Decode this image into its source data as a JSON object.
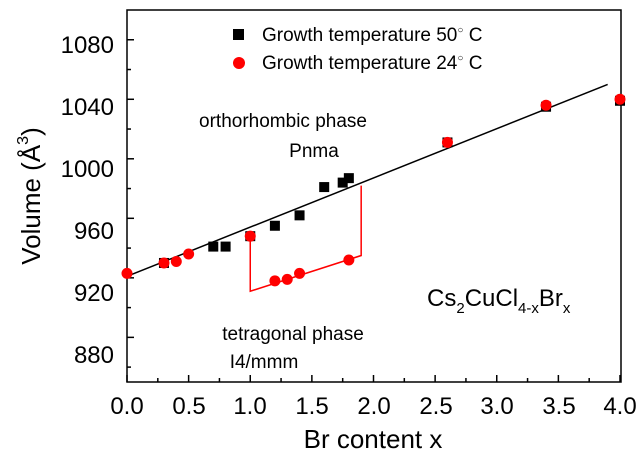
{
  "chart_data": {
    "type": "scatter",
    "xlabel": "Br content x",
    "ylabel": {
      "base": "Volume (",
      "sym": "Å",
      "sup": "3",
      "close": ")"
    },
    "xlim": [
      0,
      4.0
    ],
    "ylim": [
      850,
      1100
    ],
    "xticks": [
      "0.0",
      "0.5",
      "1.0",
      "1.5",
      "2.0",
      "2.5",
      "3.0",
      "3.5",
      "4.0"
    ],
    "yticks": [
      "880",
      "920",
      "960",
      "1000",
      "1040",
      "1080"
    ],
    "series": [
      {
        "name": "Growth temperature 50",
        "name_deg": "○",
        "name_unit": " C",
        "marker": "square",
        "color": "#000000",
        "points": [
          [
            0.3,
            930
          ],
          [
            0.7,
            941
          ],
          [
            0.8,
            941
          ],
          [
            1.0,
            948
          ],
          [
            1.2,
            955
          ],
          [
            1.4,
            962
          ],
          [
            1.6,
            981
          ],
          [
            1.75,
            984
          ],
          [
            1.8,
            987
          ],
          [
            2.6,
            1011
          ],
          [
            3.4,
            1035
          ],
          [
            4.0,
            1039
          ]
        ]
      },
      {
        "name": "Growth temperature 24",
        "name_deg": "○",
        "name_unit": " C",
        "marker": "circle",
        "color": "#ff0000",
        "points": [
          [
            0.0,
            923
          ],
          [
            0.3,
            930
          ],
          [
            0.4,
            931
          ],
          [
            0.5,
            936
          ],
          [
            1.0,
            948
          ],
          [
            1.2,
            918
          ],
          [
            1.3,
            919
          ],
          [
            1.4,
            923
          ],
          [
            1.8,
            932
          ],
          [
            2.6,
            1011
          ],
          [
            3.4,
            1036
          ],
          [
            4.0,
            1040
          ]
        ]
      }
    ],
    "fit_line": {
      "color": "#000000",
      "from": [
        0.0,
        921
      ],
      "to": [
        3.9,
        1050
      ]
    },
    "phase_bracket": {
      "color": "#ff0000",
      "path": [
        [
          1.0,
          946
        ],
        [
          1.0,
          911
        ],
        [
          1.9,
          935
        ],
        [
          1.9,
          982
        ]
      ]
    },
    "annotations": {
      "ortho_line1": "orthorhombic phase",
      "ortho_line2": "Pnma",
      "tetra_line1": "tetragonal phase",
      "tetra_line2": "I4/mmm",
      "formula": {
        "a": "Cs",
        "s1": "2",
        "b": "CuCl",
        "s2": "4-x",
        "c": "Br",
        "s3": "x"
      }
    },
    "legend_position": "top"
  }
}
